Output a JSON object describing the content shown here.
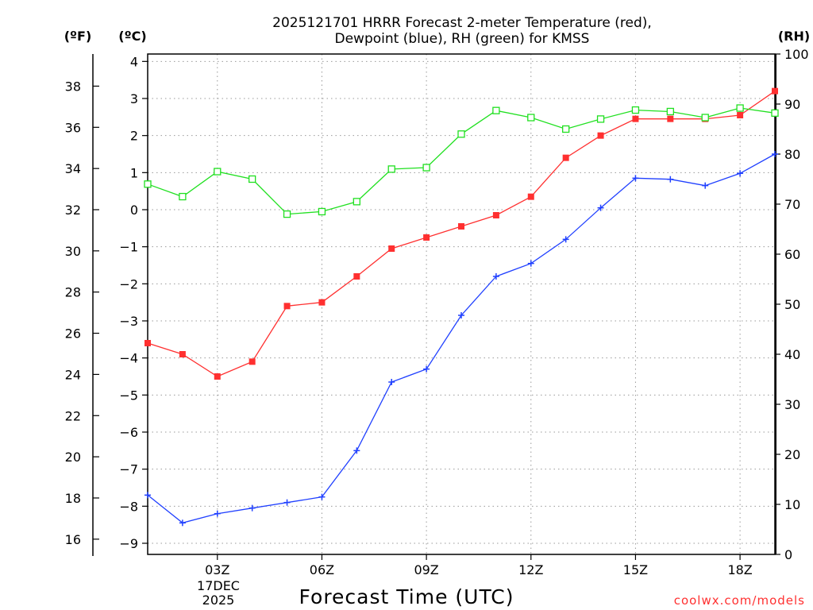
{
  "chart_data": {
    "type": "line",
    "title_line1": "2025121701 HRRR Forecast 2-meter Temperature (red),",
    "title_line2": "Dewpoint (blue), RH (green) for KMSS",
    "unit_left_f": "(ºF)",
    "unit_left_c": "(ºC)",
    "unit_right": "(RH)",
    "xlabel": "Forecast Time (UTC)",
    "x_date_line1": "17DEC",
    "x_date_line2": "2025",
    "credit": "coolwx.com/models",
    "x_hours": [
      1,
      2,
      3,
      4,
      5,
      6,
      7,
      8,
      9,
      10,
      11,
      12,
      13,
      14,
      15,
      16,
      17,
      18,
      19
    ],
    "x_range": [
      1,
      19
    ],
    "x_tick_hours": [
      3,
      6,
      9,
      12,
      15,
      18
    ],
    "x_tick_labels": [
      "03Z",
      "06Z",
      "09Z",
      "12Z",
      "15Z",
      "18Z"
    ],
    "celsius_axis": {
      "range": [
        -9.3,
        4.2
      ],
      "ticks": [
        -9,
        -8,
        -7,
        -6,
        -5,
        -4,
        -3,
        -2,
        -1,
        0,
        1,
        2,
        3,
        4
      ]
    },
    "fahrenheit_axis": {
      "ticks": [
        16,
        18,
        20,
        22,
        24,
        26,
        28,
        30,
        32,
        34,
        36,
        38
      ]
    },
    "rh_axis": {
      "range": [
        0,
        100
      ],
      "ticks": [
        0,
        10,
        20,
        30,
        40,
        50,
        60,
        70,
        80,
        90,
        100
      ]
    },
    "series": [
      {
        "name": "Temperature",
        "axis": "celsius",
        "color": "#ff3030",
        "marker": "filled-square",
        "values": [
          -3.6,
          -3.9,
          -4.5,
          -4.1,
          -2.6,
          -2.5,
          -1.8,
          -1.05,
          -0.75,
          -0.45,
          -0.15,
          0.35,
          1.4,
          2.0,
          2.45,
          2.45,
          2.45,
          2.55,
          3.2
        ]
      },
      {
        "name": "Dewpoint",
        "axis": "celsius",
        "color": "#2040ff",
        "marker": "plus",
        "values": [
          -7.7,
          -8.45,
          -8.2,
          -8.05,
          -7.9,
          -7.75,
          -6.5,
          -4.65,
          -4.3,
          -2.85,
          -1.8,
          -1.45,
          -0.8,
          0.05,
          0.85,
          0.82,
          0.65,
          0.98,
          1.5
        ]
      },
      {
        "name": "RH",
        "axis": "rh",
        "color": "#20e020",
        "marker": "open-square",
        "values": [
          74,
          71.5,
          76.5,
          75,
          68,
          68.5,
          70.5,
          77,
          77.3,
          84,
          88.7,
          87.3,
          85,
          87,
          88.8,
          88.5,
          87.3,
          89.2,
          88.2
        ]
      }
    ]
  }
}
